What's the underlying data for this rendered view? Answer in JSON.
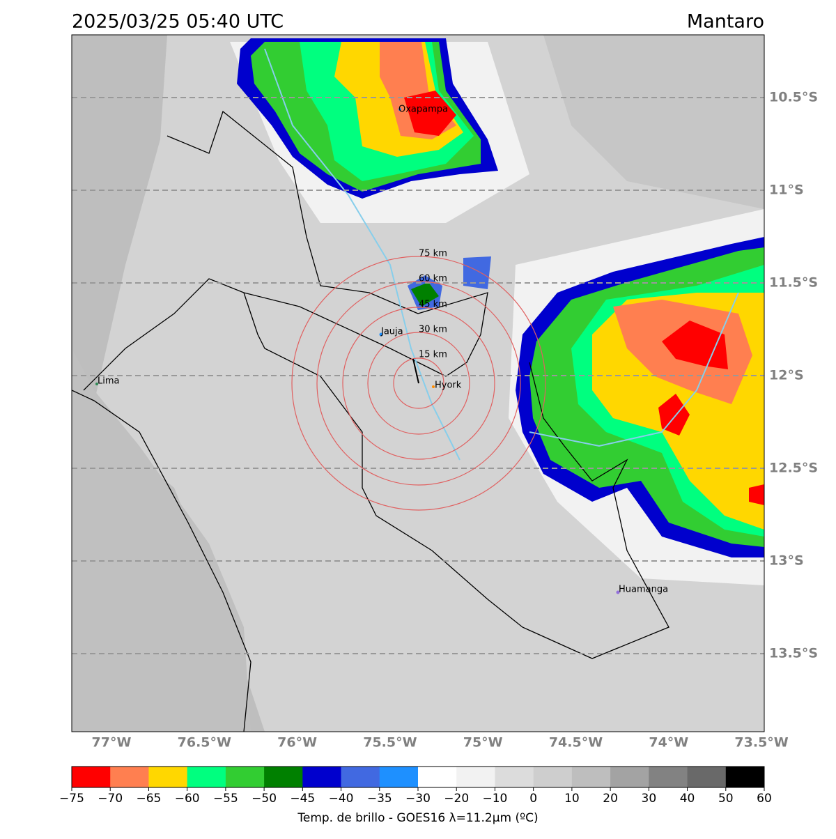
{
  "header": {
    "title": "2025/03/25 05:40 UTC",
    "region": "Mantaro"
  },
  "lat_labels": [
    "10.5°S",
    "11°S",
    "11.5°S",
    "12°S",
    "12.5°S",
    "13°S",
    "13.5°S"
  ],
  "lon_labels": [
    "77°W",
    "76.5°W",
    "76°W",
    "75.5°W",
    "75°W",
    "74.5°W",
    "74°W",
    "73.5°W"
  ],
  "cities": [
    "Oxapampa",
    "Jauja",
    "Hyork",
    "Lima",
    "Huamanga"
  ],
  "rings": [
    "15 km",
    "30 km",
    "45 km",
    "60 km",
    "75 km"
  ],
  "colorbar": {
    "ticks": [
      "−75",
      "−70",
      "−65",
      "−60",
      "−55",
      "−50",
      "−45",
      "−40",
      "−35",
      "−30",
      "−20",
      "−10",
      "0",
      "10",
      "20",
      "30",
      "40",
      "50",
      "60"
    ],
    "colors": [
      "#ff0000",
      "#ff7f50",
      "#ffd700",
      "#00ff7f",
      "#32cd32",
      "#008000",
      "#0000cd",
      "#4169e1",
      "#1e90ff",
      "#ffffff",
      "#f2f2f2",
      "#dcdcdc",
      "#cecece",
      "#bebebe",
      "#a3a3a3",
      "#828282",
      "#696969",
      "#000000"
    ],
    "label": "Temp. de brillo - GOES16 λ=11.2μm (ºC)"
  }
}
